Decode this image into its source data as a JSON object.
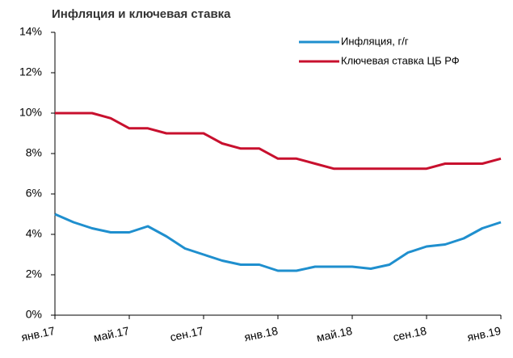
{
  "chart_data": {
    "type": "line",
    "title": "Инфляция и ключевая ставка",
    "x": [
      "2017-01",
      "2017-02",
      "2017-03",
      "2017-04",
      "2017-05",
      "2017-06",
      "2017-07",
      "2017-08",
      "2017-09",
      "2017-10",
      "2017-11",
      "2017-12",
      "2018-01",
      "2018-02",
      "2018-03",
      "2018-04",
      "2018-05",
      "2018-06",
      "2018-07",
      "2018-08",
      "2018-09",
      "2018-10",
      "2018-11",
      "2018-12",
      "2019-01"
    ],
    "series": [
      {
        "name": "Инфляция, г/г",
        "color": "#1f8fce",
        "values": [
          5.0,
          4.6,
          4.3,
          4.1,
          4.1,
          4.4,
          3.9,
          3.3,
          3.0,
          2.7,
          2.5,
          2.5,
          2.2,
          2.2,
          2.4,
          2.4,
          2.4,
          2.3,
          2.5,
          3.1,
          3.4,
          3.5,
          3.8,
          4.3,
          4.6
        ]
      },
      {
        "name": "Ключевая ставка ЦБ РФ",
        "color": "#c8102e",
        "values": [
          10,
          10,
          10,
          9.75,
          9.25,
          9.25,
          9.0,
          9.0,
          9.0,
          8.5,
          8.25,
          8.25,
          7.75,
          7.75,
          7.5,
          7.25,
          7.25,
          7.25,
          7.25,
          7.25,
          7.25,
          7.5,
          7.5,
          7.5,
          7.75
        ]
      }
    ],
    "ylim": [
      0,
      14
    ],
    "yticks": [
      {
        "value": 0,
        "label": "0%"
      },
      {
        "value": 2,
        "label": "2%"
      },
      {
        "value": 4,
        "label": "4%"
      },
      {
        "value": 6,
        "label": "6%"
      },
      {
        "value": 8,
        "label": "8%"
      },
      {
        "value": 10,
        "label": "10%"
      },
      {
        "value": 12,
        "label": "12%"
      },
      {
        "value": 14,
        "label": "14%"
      }
    ],
    "xticks": [
      {
        "value": "2017-01",
        "label": "янв.17"
      },
      {
        "value": "2017-05",
        "label": "май.17"
      },
      {
        "value": "2017-09",
        "label": "сен.17"
      },
      {
        "value": "2018-01",
        "label": "янв.18"
      },
      {
        "value": "2018-05",
        "label": "май.18"
      },
      {
        "value": "2018-09",
        "label": "сен.18"
      },
      {
        "value": "2019-01",
        "label": "янв.19"
      }
    ],
    "legend": "top-right"
  }
}
